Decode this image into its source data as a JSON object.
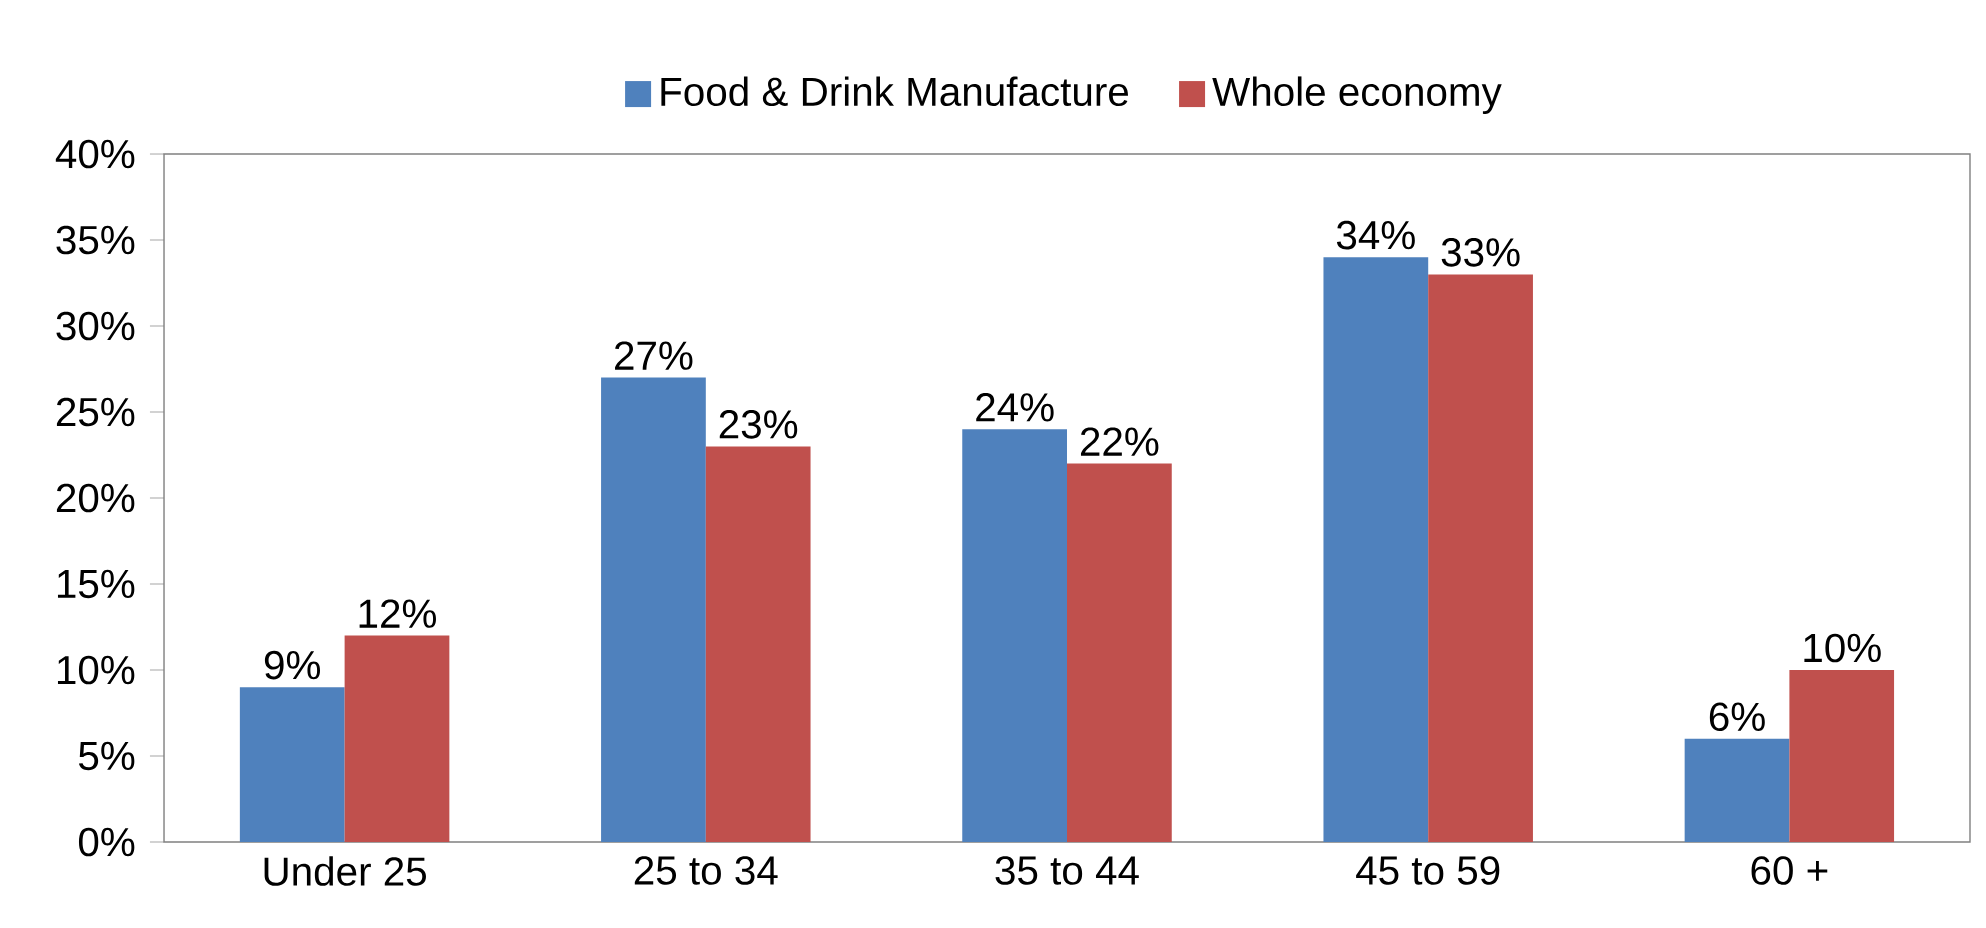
{
  "chart_data": {
    "type": "bar",
    "categories": [
      "Under 25",
      "25 to 34",
      "35 to 44",
      "45 to 59",
      "60 +"
    ],
    "series": [
      {
        "name": "Food & Drink Manufacture",
        "color": "#4f81bd",
        "values": [
          9,
          27,
          24,
          34,
          6
        ],
        "value_labels": [
          "9%",
          "27%",
          "24%",
          "34%",
          "6%"
        ]
      },
      {
        "name": "Whole economy",
        "color": "#c0504d",
        "values": [
          12,
          23,
          22,
          33,
          10
        ],
        "value_labels": [
          "12%",
          "23%",
          "22%",
          "33%",
          "10%"
        ]
      }
    ],
    "ylim": [
      0,
      40
    ],
    "yticks": [
      {
        "value": 0,
        "label": "0%"
      },
      {
        "value": 5,
        "label": "5%"
      },
      {
        "value": 10,
        "label": "10%"
      },
      {
        "value": 15,
        "label": "15%"
      },
      {
        "value": 20,
        "label": "20%"
      },
      {
        "value": 25,
        "label": "25%"
      },
      {
        "value": 30,
        "label": "30%"
      },
      {
        "value": 35,
        "label": "35%"
      },
      {
        "value": 40,
        "label": "40%"
      }
    ],
    "legend": "top",
    "grid": false
  }
}
